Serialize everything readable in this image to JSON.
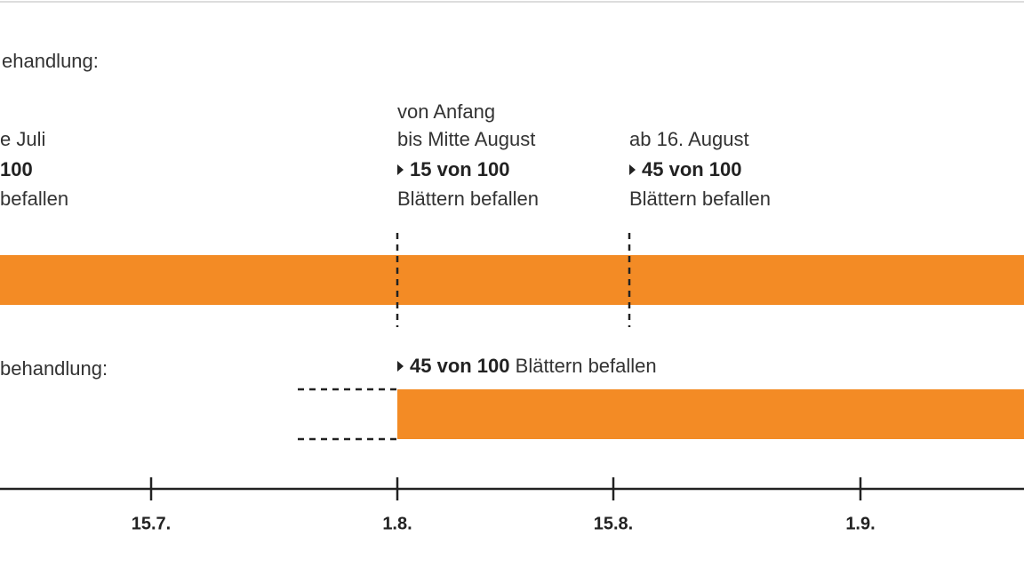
{
  "header": {
    "title": "ehandlung:"
  },
  "left_note": {
    "lines": [
      "e Juli",
      "100",
      "befallen"
    ]
  },
  "note_early": {
    "lines": [
      "von Anfang",
      "bis Mitte August"
    ],
    "count": "15 von 100",
    "text": "Blättern befallen"
  },
  "note_late": {
    "lines": [
      "ab 16. August"
    ],
    "count": "45 von 100",
    "text": "Blättern befallen"
  },
  "section2": {
    "title": "behandlung:",
    "count": "45 von 100",
    "text": "Blättern befallen"
  },
  "axis": {
    "ticks": [
      "15.7.",
      "1.8.",
      "15.8.",
      "1.9."
    ]
  }
}
